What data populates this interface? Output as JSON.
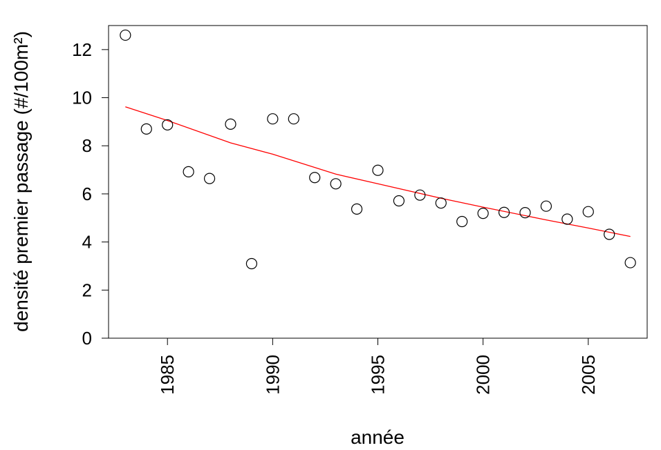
{
  "chart_data": {
    "type": "scatter",
    "title": "",
    "xlabel": "année",
    "ylabel": "densité premier passage (#/100m²)",
    "xlim": [
      1982.2,
      2007.8
    ],
    "ylim": [
      0,
      13
    ],
    "x_ticks": [
      1985,
      1990,
      1995,
      2000,
      2005
    ],
    "y_ticks": [
      0,
      2,
      4,
      6,
      8,
      10,
      12
    ],
    "grid": false,
    "legend": "none",
    "series": [
      {
        "type": "scatter",
        "marker": "open-circle",
        "color": "#000000",
        "x": [
          1983,
          1984,
          1985,
          1986,
          1987,
          1988,
          1989,
          1990,
          1991,
          1992,
          1993,
          1994,
          1995,
          1996,
          1997,
          1998,
          1999,
          2000,
          2001,
          2002,
          2003,
          2004,
          2005,
          2006,
          2007
        ],
        "y": [
          12.6,
          8.7,
          8.87,
          6.92,
          6.64,
          8.9,
          3.1,
          9.12,
          9.12,
          6.68,
          6.42,
          5.37,
          6.98,
          5.71,
          5.95,
          5.62,
          4.85,
          5.19,
          5.23,
          5.22,
          5.49,
          4.95,
          5.26,
          4.32,
          3.14
        ]
      },
      {
        "type": "line",
        "color": "#ff0000",
        "x": [
          1983,
          1985,
          1988,
          1990,
          1993,
          1995,
          1998,
          2000,
          2003,
          2005,
          2007
        ],
        "y": [
          9.62,
          9.05,
          8.12,
          7.65,
          6.82,
          6.42,
          5.82,
          5.45,
          4.92,
          4.58,
          4.23
        ]
      }
    ]
  }
}
